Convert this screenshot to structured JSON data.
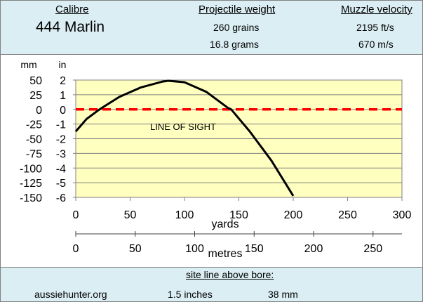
{
  "header": {
    "calibre_label": "Calibre",
    "calibre_value": "444 Marlin",
    "weight_label": "Projectile weight",
    "weight_grains": "260 grains",
    "weight_grams": "16.8 grams",
    "velocity_label": "Muzzle velocity",
    "velocity_fps": "2195 ft/s",
    "velocity_ms": "670 m/s"
  },
  "footer": {
    "site": "aussiehunter.org",
    "sightline_label": "site line above bore:",
    "sightline_in": "1.5 inches",
    "sightline_mm": "38 mm"
  },
  "colors": {
    "plot_bg": "#ffffc0",
    "trajectory": "#000000",
    "line_of_sight": "#ff0000",
    "panel_bg": "#dbeef4"
  },
  "chart_data": {
    "type": "line",
    "xlabel": "yards",
    "x2label": "metres",
    "ylabel_left": "mm",
    "ylabel_right": "in",
    "annotation": "LINE OF SIGHT",
    "xlim": [
      0,
      300
    ],
    "x_ticks": [
      0,
      50,
      100,
      150,
      200,
      250,
      300
    ],
    "ylim_in": [
      -6,
      2
    ],
    "y_ticks_in": [
      2,
      1,
      0,
      -1,
      -2,
      -3,
      -4,
      -5,
      -6
    ],
    "ylim_mm": [
      -150,
      50
    ],
    "y_ticks_mm": [
      50,
      25,
      0,
      -25,
      -50,
      -75,
      -100,
      -125,
      -150
    ],
    "x2_ticks_m": [
      0,
      50,
      100,
      150,
      200,
      250
    ],
    "grid": "horizontal",
    "series": [
      {
        "kind": "trajectory",
        "x": [
          0,
          10,
          20,
          25,
          40,
          60,
          80,
          85,
          100,
          120,
          140,
          143,
          160,
          180,
          200
        ],
        "y": [
          -1.5,
          -0.65,
          -0.1,
          0.15,
          0.85,
          1.5,
          1.9,
          1.95,
          1.85,
          1.2,
          0.1,
          0.0,
          -1.5,
          -3.5,
          -5.9
        ]
      },
      {
        "kind": "line_of_sight",
        "x": [
          0,
          300
        ],
        "y": [
          0,
          0
        ]
      }
    ]
  }
}
